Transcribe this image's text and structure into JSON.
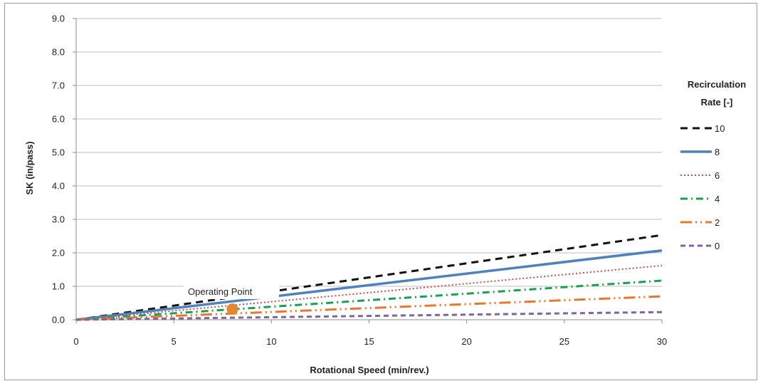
{
  "chart_data": {
    "type": "line",
    "xlabel": "Rotational Speed (min/rev.)",
    "ylabel": "SK (in/pass)",
    "xlim": [
      0,
      30
    ],
    "ylim": [
      0,
      9
    ],
    "xticks": [
      "0",
      "5",
      "10",
      "15",
      "20",
      "25",
      "30"
    ],
    "yticks": [
      "0.0",
      "1.0",
      "2.0",
      "3.0",
      "4.0",
      "5.0",
      "6.0",
      "7.0",
      "8.0",
      "9.0"
    ],
    "grid": "horizontal",
    "legend_position": "right",
    "legend_title": [
      "Recirculation",
      "Rate [-]"
    ],
    "series": [
      {
        "name": "10",
        "x": [
          0,
          30
        ],
        "y": [
          0,
          2.53
        ],
        "color": "#111111",
        "style": "dashed"
      },
      {
        "name": "8",
        "x": [
          0,
          30
        ],
        "y": [
          0,
          2.07
        ],
        "color": "#4f81bd",
        "style": "solid"
      },
      {
        "name": "6",
        "x": [
          0,
          30
        ],
        "y": [
          0,
          1.62
        ],
        "color": "#c0504d",
        "style": "dotted"
      },
      {
        "name": "4",
        "x": [
          0,
          30
        ],
        "y": [
          0,
          1.17
        ],
        "color": "#1aa050",
        "style": "dash-dot"
      },
      {
        "name": "2",
        "x": [
          0,
          30
        ],
        "y": [
          0,
          0.7
        ],
        "color": "#e8772e",
        "style": "long-dash-dot"
      },
      {
        "name": "0",
        "x": [
          0,
          30
        ],
        "y": [
          0,
          0.23
        ],
        "color": "#8064a2",
        "style": "dashed-thick"
      }
    ],
    "annotation": {
      "text": "Operating Point",
      "x": 8,
      "y": 0.32,
      "marker_color": "#e8862e"
    }
  }
}
